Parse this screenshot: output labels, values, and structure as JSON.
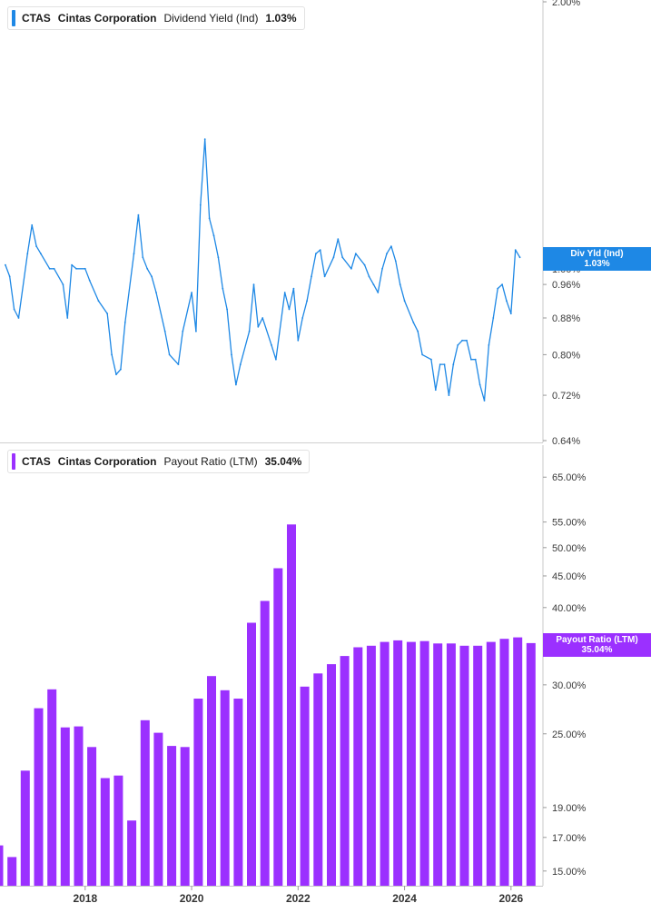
{
  "legends": [
    {
      "ticker": "CTAS",
      "company": "Cintas Corporation",
      "metric": "Dividend Yield (Ind)",
      "value": "1.03%",
      "color": "#1e88e5"
    },
    {
      "ticker": "CTAS",
      "company": "Cintas Corporation",
      "metric": "Payout Ratio (LTM)",
      "value": "35.04%",
      "color": "#9b30ff"
    }
  ],
  "tags": {
    "yield": {
      "line1": "Div Yld (Ind)",
      "line2": "1.03%"
    },
    "payout": {
      "line1": "Payout Ratio (LTM)",
      "line2": "35.04%"
    }
  },
  "chart_data": [
    {
      "type": "line",
      "title": "CTAS Cintas Corporation Dividend Yield (Ind)",
      "series": [
        {
          "name": "Dividend Yield (Ind)",
          "color": "#1e88e5"
        }
      ],
      "y_scale": "log",
      "ylim": [
        0.64,
        2.0
      ],
      "y_ticks": [
        "2.00%",
        "1.00%",
        "0.96%",
        "0.88%",
        "0.80%",
        "0.72%",
        "0.64%"
      ],
      "last_value": 1.03,
      "points": [
        [
          "2016-07",
          1.01
        ],
        [
          "2016-08",
          0.98
        ],
        [
          "2016-09",
          0.9
        ],
        [
          "2016-10",
          0.88
        ],
        [
          "2016-12",
          1.04
        ],
        [
          "2017-01",
          1.12
        ],
        [
          "2017-02",
          1.06
        ],
        [
          "2017-03",
          1.04
        ],
        [
          "2017-05",
          1.0
        ],
        [
          "2017-06",
          1.0
        ],
        [
          "2017-08",
          0.96
        ],
        [
          "2017-09",
          0.88
        ],
        [
          "2017-10",
          1.01
        ],
        [
          "2017-11",
          1.0
        ],
        [
          "2018-01",
          1.0
        ],
        [
          "2018-02",
          0.97
        ],
        [
          "2018-04",
          0.92
        ],
        [
          "2018-06",
          0.89
        ],
        [
          "2018-07",
          0.8
        ],
        [
          "2018-08",
          0.76
        ],
        [
          "2018-09",
          0.77
        ],
        [
          "2018-10",
          0.87
        ],
        [
          "2018-12",
          1.04
        ],
        [
          "2019-01",
          1.15
        ],
        [
          "2019-02",
          1.03
        ],
        [
          "2019-03",
          1.0
        ],
        [
          "2019-04",
          0.98
        ],
        [
          "2019-05",
          0.94
        ],
        [
          "2019-07",
          0.85
        ],
        [
          "2019-08",
          0.8
        ],
        [
          "2019-10",
          0.78
        ],
        [
          "2019-11",
          0.85
        ],
        [
          "2020-01",
          0.94
        ],
        [
          "2020-02",
          0.85
        ],
        [
          "2020-03",
          1.18
        ],
        [
          "2020-04",
          1.4
        ],
        [
          "2020-05",
          1.14
        ],
        [
          "2020-06",
          1.09
        ],
        [
          "2020-07",
          1.03
        ],
        [
          "2020-08",
          0.95
        ],
        [
          "2020-09",
          0.9
        ],
        [
          "2020-10",
          0.8
        ],
        [
          "2020-11",
          0.74
        ],
        [
          "2020-12",
          0.78
        ],
        [
          "2021-02",
          0.85
        ],
        [
          "2021-03",
          0.96
        ],
        [
          "2021-04",
          0.86
        ],
        [
          "2021-05",
          0.88
        ],
        [
          "2021-07",
          0.82
        ],
        [
          "2021-08",
          0.79
        ],
        [
          "2021-10",
          0.94
        ],
        [
          "2021-11",
          0.9
        ],
        [
          "2021-12",
          0.95
        ],
        [
          "2022-01",
          0.83
        ],
        [
          "2022-02",
          0.88
        ],
        [
          "2022-03",
          0.92
        ],
        [
          "2022-04",
          0.98
        ],
        [
          "2022-05",
          1.04
        ],
        [
          "2022-06",
          1.05
        ],
        [
          "2022-07",
          0.98
        ],
        [
          "2022-09",
          1.03
        ],
        [
          "2022-10",
          1.08
        ],
        [
          "2022-11",
          1.03
        ],
        [
          "2023-01",
          1.0
        ],
        [
          "2023-02",
          1.04
        ],
        [
          "2023-04",
          1.01
        ],
        [
          "2023-05",
          0.98
        ],
        [
          "2023-06",
          0.96
        ],
        [
          "2023-07",
          0.94
        ],
        [
          "2023-08",
          1.0
        ],
        [
          "2023-09",
          1.04
        ],
        [
          "2023-10",
          1.06
        ],
        [
          "2023-11",
          1.02
        ],
        [
          "2023-12",
          0.96
        ],
        [
          "2024-01",
          0.92
        ],
        [
          "2024-03",
          0.87
        ],
        [
          "2024-04",
          0.85
        ],
        [
          "2024-05",
          0.8
        ],
        [
          "2024-07",
          0.79
        ],
        [
          "2024-08",
          0.73
        ],
        [
          "2024-09",
          0.78
        ],
        [
          "2024-10",
          0.78
        ],
        [
          "2024-11",
          0.72
        ],
        [
          "2024-12",
          0.78
        ],
        [
          "2025-01",
          0.82
        ],
        [
          "2025-02",
          0.83
        ],
        [
          "2025-03",
          0.83
        ],
        [
          "2025-04",
          0.79
        ],
        [
          "2025-05",
          0.79
        ],
        [
          "2025-06",
          0.74
        ],
        [
          "2025-07",
          0.71
        ],
        [
          "2025-08",
          0.82
        ],
        [
          "2025-09",
          0.88
        ],
        [
          "2025-10",
          0.95
        ],
        [
          "2025-11",
          0.96
        ],
        [
          "2025-12",
          0.92
        ],
        [
          "2026-01",
          0.89
        ],
        [
          "2026-02",
          1.05
        ],
        [
          "2026-03",
          1.03
        ]
      ]
    },
    {
      "type": "bar",
      "title": "CTAS Cintas Corporation Payout Ratio (LTM)",
      "series": [
        {
          "name": "Payout Ratio (LTM)",
          "color": "#9b30ff"
        }
      ],
      "y_scale": "log",
      "ylim": [
        14.5,
        69.0
      ],
      "y_ticks": [
        "65.00%",
        "55.00%",
        "50.00%",
        "45.00%",
        "40.00%",
        "30.00%",
        "25.00%",
        "19.00%",
        "17.00%",
        "15.00%"
      ],
      "x_ticks": [
        "2018",
        "2020",
        "2022",
        "2024",
        "2026"
      ],
      "x": [
        "2016-Q2",
        "2016-Q3",
        "2016-Q4",
        "2017-Q1",
        "2017-Q2",
        "2017-Q3",
        "2017-Q4",
        "2018-Q1",
        "2018-Q2",
        "2018-Q3",
        "2018-Q4",
        "2019-Q1",
        "2019-Q2",
        "2019-Q3",
        "2019-Q4",
        "2020-Q1",
        "2020-Q2",
        "2020-Q3",
        "2020-Q4",
        "2021-Q1",
        "2021-Q2",
        "2021-Q3",
        "2021-Q4",
        "2022-Q1",
        "2022-Q2",
        "2022-Q3",
        "2022-Q4",
        "2023-Q1",
        "2023-Q2",
        "2023-Q3",
        "2023-Q4",
        "2024-Q1",
        "2024-Q2",
        "2024-Q3",
        "2024-Q4",
        "2025-Q1",
        "2025-Q2",
        "2025-Q3",
        "2025-Q4",
        "2026-Q1",
        "2026-Q2"
      ],
      "values": [
        16.5,
        15.8,
        21.8,
        27.5,
        29.5,
        25.6,
        25.7,
        23.8,
        21.2,
        21.4,
        18.1,
        26.3,
        25.1,
        23.9,
        23.8,
        28.5,
        31.0,
        29.4,
        28.5,
        37.8,
        41.0,
        46.3,
        54.5,
        29.8,
        31.3,
        32.4,
        33.4,
        34.5,
        34.7,
        35.2,
        35.4,
        35.2,
        35.3,
        35.0,
        35.0,
        34.7,
        34.7,
        35.2,
        35.6,
        35.8,
        35.04
      ]
    }
  ]
}
